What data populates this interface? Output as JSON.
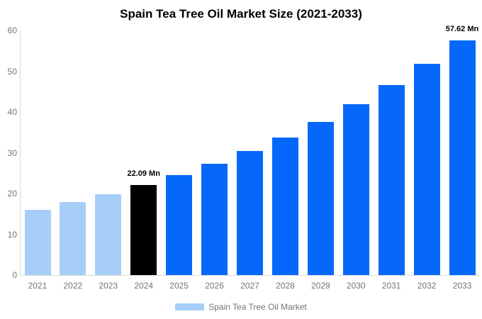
{
  "chart_data": {
    "type": "bar",
    "title": "Spain Tea Tree Oil Market Size (2021-2033)",
    "unit": "Mn",
    "categories": [
      "2021",
      "2022",
      "2023",
      "2024",
      "2025",
      "2026",
      "2027",
      "2028",
      "2029",
      "2030",
      "2031",
      "2032",
      "2033"
    ],
    "values": [
      16.05,
      17.85,
      19.86,
      22.09,
      24.57,
      27.34,
      30.41,
      33.83,
      37.63,
      41.86,
      46.57,
      51.8,
      57.62
    ],
    "bar_roles": [
      "historical",
      "historical",
      "historical",
      "highlight",
      "forecast",
      "forecast",
      "forecast",
      "forecast",
      "forecast",
      "forecast",
      "forecast",
      "forecast",
      "forecast"
    ],
    "colors": {
      "historical": "#A6CEF8",
      "highlight": "#000000",
      "forecast": "#0568FA",
      "axis_line": "#D9D9D9",
      "tick_text": "#757575",
      "title_text": "#000000"
    },
    "xlabel": "",
    "ylabel": "",
    "ylim": [
      0,
      60
    ],
    "yticks": [
      0,
      10,
      20,
      30,
      40,
      50,
      60
    ],
    "grid": false,
    "annotations": [
      {
        "category": "2024",
        "text": "22.09 Mn"
      },
      {
        "category": "2033",
        "text": "57.62 Mn"
      }
    ],
    "legend": {
      "position": "bottom",
      "label": "Spain Tea Tree Oil Market",
      "swatch_color": "#A6CEF8"
    }
  }
}
